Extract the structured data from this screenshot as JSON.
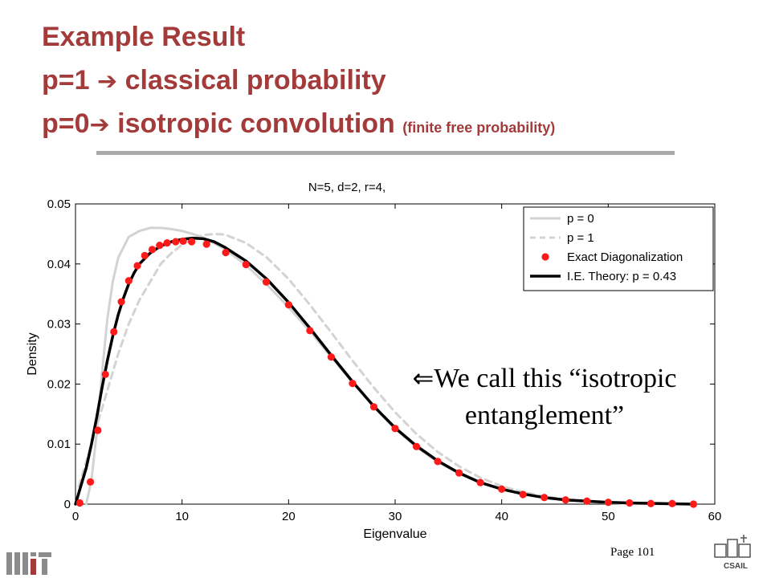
{
  "slide": {
    "title_line1": "Example Result",
    "title_line2_prefix": "p=1",
    "title_line2_arrow": "➔",
    "title_line2_rest": "classical probability",
    "title_line3_prefix": "p=0",
    "title_line3_arrow": "➔",
    "title_line3_rest": "isotropic convolution",
    "title_line3_note": "(finite free probability)",
    "annotation_arrow": "⇐",
    "annotation_line1": "We call this “isotropic",
    "annotation_line2": "entanglement”",
    "page_number": "Page 101",
    "csail_label": "CSAIL",
    "colors": {
      "title": "#a33b3b",
      "rule": "#a9a9a9"
    }
  },
  "chart_data": {
    "type": "line",
    "title": "N=5, d=2, r=4,",
    "xlabel": "Eigenvalue",
    "ylabel": "Density",
    "xlim": [
      0,
      60
    ],
    "ylim": [
      0,
      0.05
    ],
    "xticks": [
      0,
      10,
      20,
      30,
      40,
      50,
      60
    ],
    "yticks": [
      0,
      0.01,
      0.02,
      0.03,
      0.04,
      0.05
    ],
    "ytick_labels": [
      "0",
      "0.01",
      "0.02",
      "0.03",
      "0.04",
      "0.05"
    ],
    "grid": false,
    "legend_position": "top-right",
    "series": [
      {
        "name": "p = 0",
        "style": "solid-light-gray",
        "color": "#d3d3d3",
        "x": [
          1.0,
          1.5,
          2.0,
          2.5,
          3.0,
          3.5,
          4.0,
          5.0,
          6.0,
          7.0,
          8.0,
          9.0,
          10.0,
          11.0,
          12.0,
          14.0,
          16.0,
          18.0,
          20.0,
          22.0,
          24.0,
          26.0,
          28.0,
          30.0,
          32.0,
          34.0,
          36.0,
          38.0,
          40.0,
          42.0,
          44.0,
          46.0,
          48.0,
          50.0,
          52.0,
          55.0,
          58.0
        ],
        "y": [
          0.0,
          0.004,
          0.012,
          0.022,
          0.031,
          0.037,
          0.041,
          0.0445,
          0.0455,
          0.046,
          0.046,
          0.0458,
          0.0455,
          0.045,
          0.0444,
          0.0425,
          0.0398,
          0.0365,
          0.0328,
          0.0288,
          0.0245,
          0.0203,
          0.0162,
          0.0125,
          0.0095,
          0.007,
          0.0051,
          0.0036,
          0.0025,
          0.0017,
          0.0011,
          0.0007,
          0.0004,
          0.0002,
          0.0001,
          0.0,
          0.0
        ]
      },
      {
        "name": "p = 1",
        "style": "dashed-light-gray",
        "color": "#d3d3d3",
        "x": [
          0.3,
          1.0,
          2.0,
          3.0,
          4.0,
          5.0,
          6.0,
          7.0,
          8.0,
          9.0,
          10.0,
          11.0,
          12.0,
          13.0,
          14.0,
          16.0,
          18.0,
          20.0,
          22.0,
          24.0,
          26.0,
          28.0,
          30.0,
          32.0,
          34.0,
          36.0,
          38.0,
          40.0,
          42.0,
          44.0,
          46.0,
          48.0,
          50.0,
          52.0,
          55.0,
          58.0
        ],
        "y": [
          0.003,
          0.007,
          0.013,
          0.019,
          0.025,
          0.03,
          0.034,
          0.037,
          0.04,
          0.0418,
          0.0432,
          0.0442,
          0.0448,
          0.045,
          0.0449,
          0.0435,
          0.041,
          0.0375,
          0.0332,
          0.0286,
          0.0239,
          0.0194,
          0.0153,
          0.0117,
          0.0087,
          0.0063,
          0.0044,
          0.003,
          0.002,
          0.0013,
          0.0008,
          0.0005,
          0.0003,
          0.0002,
          0.0001,
          0.0
        ]
      },
      {
        "name": "Exact Diagonalization",
        "style": "red-dots",
        "color": "#ff1a1a",
        "x": [
          0.4,
          1.4,
          2.1,
          2.8,
          3.6,
          4.3,
          5.0,
          5.8,
          6.5,
          7.2,
          7.9,
          8.6,
          9.4,
          10.1,
          10.9,
          12.3,
          14.1,
          16.0,
          17.9,
          20.0,
          22.0,
          24.0,
          26.0,
          28.0,
          30.0,
          32.0,
          34.0,
          36.0,
          38.0,
          40.0,
          42.0,
          44.0,
          46.0,
          48.0,
          50.0,
          52.0,
          54.0,
          56.0,
          58.0
        ],
        "y": [
          0.0002,
          0.0037,
          0.0123,
          0.0216,
          0.0287,
          0.0337,
          0.0372,
          0.0397,
          0.0414,
          0.0424,
          0.0431,
          0.0435,
          0.0437,
          0.0438,
          0.0437,
          0.0433,
          0.0419,
          0.0399,
          0.037,
          0.0332,
          0.0289,
          0.0245,
          0.0201,
          0.0162,
          0.0126,
          0.0096,
          0.0071,
          0.0052,
          0.0036,
          0.0025,
          0.0016,
          0.0011,
          0.0007,
          0.0005,
          0.0003,
          0.0002,
          0.0001,
          0.0001,
          0.0
        ]
      },
      {
        "name": "I.E. Theory: p = 0.43",
        "style": "solid-black-thick",
        "color": "#000000",
        "x": [
          0.0,
          0.5,
          1.0,
          1.5,
          2.0,
          2.5,
          3.0,
          3.5,
          4.0,
          4.5,
          5.0,
          5.5,
          6.0,
          7.0,
          8.0,
          9.0,
          10.0,
          11.0,
          12.0,
          13.0,
          14.0,
          16.0,
          18.0,
          20.0,
          22.0,
          24.0,
          26.0,
          28.0,
          30.0,
          32.0,
          34.0,
          36.0,
          38.0,
          40.0,
          42.0,
          44.0,
          46.0,
          48.0,
          50.0,
          52.0,
          55.0,
          58.0
        ],
        "y": [
          0.0,
          0.003,
          0.006,
          0.01,
          0.0145,
          0.0195,
          0.024,
          0.028,
          0.0315,
          0.0343,
          0.0367,
          0.0385,
          0.04,
          0.0418,
          0.043,
          0.0437,
          0.0441,
          0.0443,
          0.0442,
          0.0437,
          0.0428,
          0.0405,
          0.0374,
          0.0336,
          0.0293,
          0.0248,
          0.0204,
          0.0163,
          0.0127,
          0.0097,
          0.0072,
          0.0052,
          0.0036,
          0.0025,
          0.0017,
          0.0011,
          0.0007,
          0.0005,
          0.0003,
          0.0002,
          0.0001,
          0.0
        ]
      }
    ]
  }
}
